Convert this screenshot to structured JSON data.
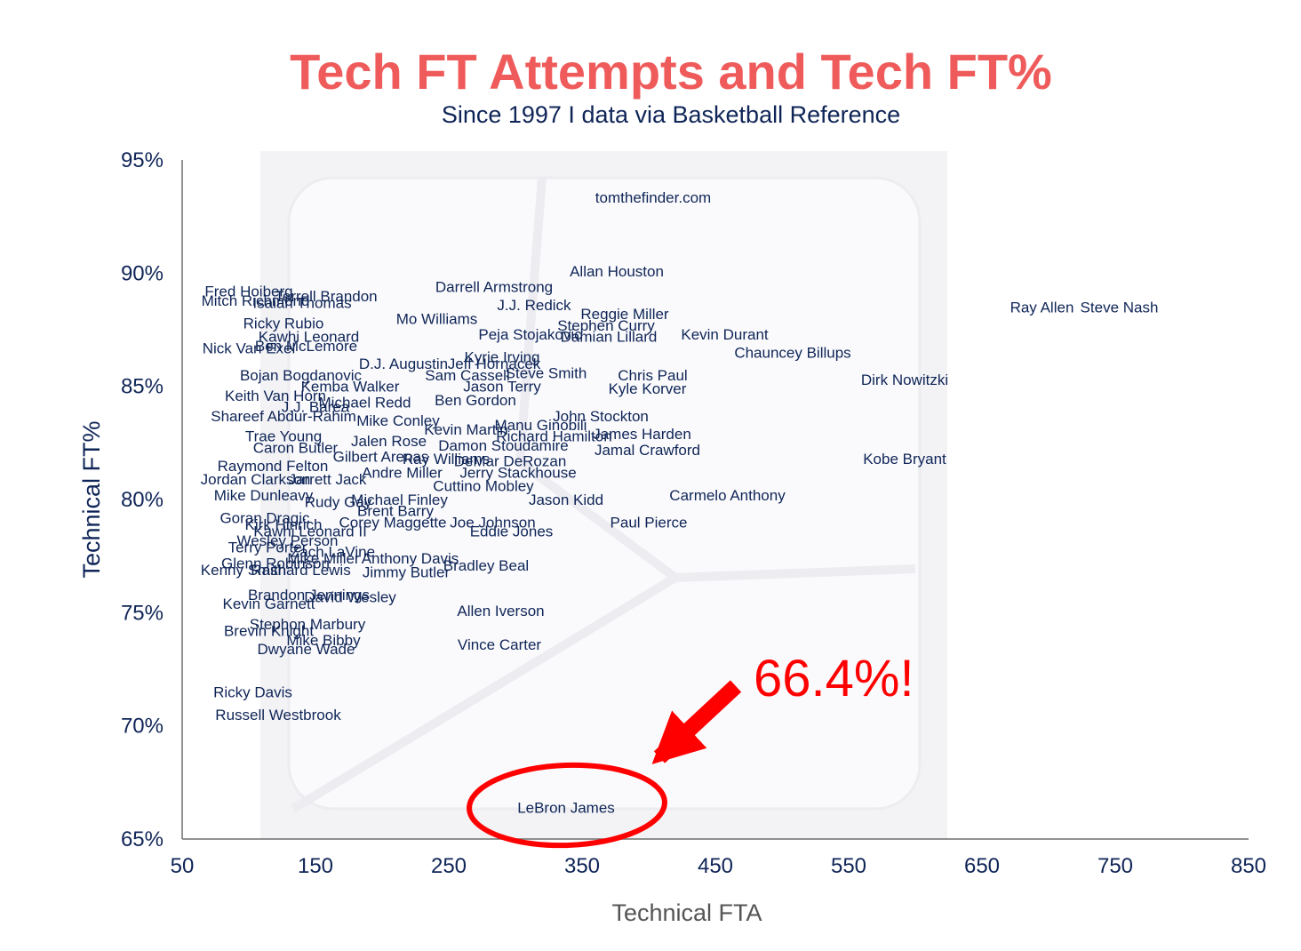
{
  "colors": {
    "title": "#ef5b5b",
    "navy": "#0f2557",
    "axis_gray": "#555555",
    "annotation_red": "#ff0000",
    "watermark_bg": "#f3f3f6"
  },
  "watermark": "tomthefinder.com",
  "annotation": "66.4%!",
  "chart_data": {
    "type": "scatter",
    "title": "Tech FT Attempts and Tech FT%",
    "subtitle": "Since 1997 I data via Basketball Reference",
    "xlabel": "Technical FTA",
    "ylabel": "Technical FT%",
    "xlim": [
      50,
      850
    ],
    "ylim": [
      65,
      95
    ],
    "xticks": [
      {
        "v": 50,
        "label": "50"
      },
      {
        "v": 150,
        "label": "150"
      },
      {
        "v": 250,
        "label": "250"
      },
      {
        "v": 350,
        "label": "350"
      },
      {
        "v": 450,
        "label": "450"
      },
      {
        "v": 550,
        "label": "550"
      },
      {
        "v": 650,
        "label": "650"
      },
      {
        "v": 750,
        "label": "750"
      },
      {
        "v": 850,
        "label": "850"
      }
    ],
    "yticks": [
      {
        "v": 65,
        "label": "65%"
      },
      {
        "v": 70,
        "label": "70%"
      },
      {
        "v": 75,
        "label": "75%"
      },
      {
        "v": 80,
        "label": "80%"
      },
      {
        "v": 85,
        "label": "85%"
      },
      {
        "v": 90,
        "label": "90%"
      },
      {
        "v": 95,
        "label": "95%"
      }
    ],
    "grid": false,
    "legend": "none",
    "highlight": "LeBron James",
    "points": [
      {
        "name": "Ray Allen",
        "x": 695,
        "y": 88.5
      },
      {
        "name": "Steve Nash",
        "x": 753,
        "y": 88.5
      },
      {
        "name": "Dirk Nowitzki",
        "x": 592,
        "y": 85.3
      },
      {
        "name": "Chauncey Billups",
        "x": 508,
        "y": 86.5
      },
      {
        "name": "Kobe Bryant",
        "x": 592,
        "y": 81.8
      },
      {
        "name": "Kevin Durant",
        "x": 457,
        "y": 87.3
      },
      {
        "name": "Carmelo Anthony",
        "x": 459,
        "y": 80.2
      },
      {
        "name": "Chris Paul",
        "x": 403,
        "y": 85.5
      },
      {
        "name": "Kyle Korver",
        "x": 399,
        "y": 84.9
      },
      {
        "name": "James Harden",
        "x": 395,
        "y": 82.9
      },
      {
        "name": "Jamal Crawford",
        "x": 399,
        "y": 82.2
      },
      {
        "name": "Paul Pierce",
        "x": 400,
        "y": 79.0
      },
      {
        "name": "Allan Houston",
        "x": 376,
        "y": 90.1
      },
      {
        "name": "Reggie Miller",
        "x": 382,
        "y": 88.2
      },
      {
        "name": "Stephen Curry",
        "x": 368,
        "y": 87.7
      },
      {
        "name": "Damian Lillard",
        "x": 370,
        "y": 87.2
      },
      {
        "name": "John Stockton",
        "x": 364,
        "y": 83.7
      },
      {
        "name": "Jason Kidd",
        "x": 338,
        "y": 80.0
      },
      {
        "name": "Darrell Armstrong",
        "x": 284,
        "y": 89.4
      },
      {
        "name": "J.J. Redick",
        "x": 314,
        "y": 88.6
      },
      {
        "name": "Peja Stojakovic",
        "x": 311,
        "y": 87.3
      },
      {
        "name": "Mo Williams",
        "x": 241,
        "y": 88.0
      },
      {
        "name": "Kyrie Irving",
        "x": 290,
        "y": 86.3
      },
      {
        "name": "Steve Smith",
        "x": 323,
        "y": 85.6
      },
      {
        "name": "Sam Cassell",
        "x": 264,
        "y": 85.5
      },
      {
        "name": "Jason Terry",
        "x": 290,
        "y": 85.0
      },
      {
        "name": "Ben Gordon",
        "x": 270,
        "y": 84.4
      },
      {
        "name": "Manu Ginobili",
        "x": 319,
        "y": 83.3
      },
      {
        "name": "Richard Hamilton",
        "x": 329,
        "y": 82.8
      },
      {
        "name": "Damon Stoudamire",
        "x": 291,
        "y": 82.4
      },
      {
        "name": "DeMar DeRozan",
        "x": 296,
        "y": 81.7
      },
      {
        "name": "Jerry Stackhouse",
        "x": 302,
        "y": 81.2
      },
      {
        "name": "Cuttino Mobley",
        "x": 276,
        "y": 80.6
      },
      {
        "name": "Joe Johnson",
        "x": 283,
        "y": 79.0
      },
      {
        "name": "Eddie Jones",
        "x": 297,
        "y": 78.6
      },
      {
        "name": "Bradley Beal",
        "x": 278,
        "y": 77.1
      },
      {
        "name": "Jimmy Butler",
        "x": 218,
        "y": 76.8
      },
      {
        "name": "Anthony Davis",
        "x": 221,
        "y": 77.4
      },
      {
        "name": "David Wesley",
        "x": 176,
        "y": 75.7
      },
      {
        "name": "Allen Iverson",
        "x": 289,
        "y": 75.1
      },
      {
        "name": "Vince Carter",
        "x": 288,
        "y": 73.6
      },
      {
        "name": "Fred Hoiberg",
        "x": 100,
        "y": 89.2
      },
      {
        "name": "Mitch Richmond",
        "x": 105,
        "y": 88.8
      },
      {
        "name": "Isaiah Thomas",
        "x": 140,
        "y": 88.7
      },
      {
        "name": "Terrell Brandon",
        "x": 158,
        "y": 89.0
      },
      {
        "name": "Ricky Rubio",
        "x": 126,
        "y": 87.8
      },
      {
        "name": "Kawhi Leonard",
        "x": 145,
        "y": 87.2
      },
      {
        "name": "Nick Van Exel",
        "x": 100,
        "y": 86.7
      },
      {
        "name": "Ben McLemore",
        "x": 143,
        "y": 86.8
      },
      {
        "name": "D.J. Augustin",
        "x": 216,
        "y": 86.0
      },
      {
        "name": "Jeff Hornacek",
        "x": 284,
        "y": 86.0
      },
      {
        "name": "Bojan Bogdanovic",
        "x": 139,
        "y": 85.5
      },
      {
        "name": "Kemba Walker",
        "x": 176,
        "y": 85.0
      },
      {
        "name": "Keith Van Horn",
        "x": 120,
        "y": 84.6
      },
      {
        "name": "J.J. Barea",
        "x": 150,
        "y": 84.1
      },
      {
        "name": "Michael Redd",
        "x": 187,
        "y": 84.3
      },
      {
        "name": "Shareef Abdur-Rahim",
        "x": 126,
        "y": 83.7
      },
      {
        "name": "Mike Conley",
        "x": 212,
        "y": 83.5
      },
      {
        "name": "Kevin Martin",
        "x": 263,
        "y": 83.1
      },
      {
        "name": "Trae Young",
        "x": 126,
        "y": 82.8
      },
      {
        "name": "Jalen Rose",
        "x": 205,
        "y": 82.6
      },
      {
        "name": "Caron Butler",
        "x": 135,
        "y": 82.3
      },
      {
        "name": "Gilbert Arenas",
        "x": 199,
        "y": 81.9
      },
      {
        "name": "Ray Williams",
        "x": 248,
        "y": 81.8
      },
      {
        "name": "Raymond Felton",
        "x": 118,
        "y": 81.5
      },
      {
        "name": "Andre Miller",
        "x": 215,
        "y": 81.2
      },
      {
        "name": "Jordan Clarkson",
        "x": 105,
        "y": 80.9
      },
      {
        "name": "Jarrett Jack",
        "x": 159,
        "y": 80.9
      },
      {
        "name": "Mike Dunleavy",
        "x": 111,
        "y": 80.2
      },
      {
        "name": "Michael Finley",
        "x": 213,
        "y": 80.0
      },
      {
        "name": "Rudy Gay",
        "x": 167,
        "y": 79.9
      },
      {
        "name": "Brent Barry",
        "x": 210,
        "y": 79.5
      },
      {
        "name": "Goran Dragic",
        "x": 112,
        "y": 79.2
      },
      {
        "name": "Corey Maggette",
        "x": 208,
        "y": 79.0
      },
      {
        "name": "Kirk Hinrich",
        "x": 126,
        "y": 78.9
      },
      {
        "name": "Wesley Person",
        "x": 129,
        "y": 78.2
      },
      {
        "name": "Kawhi Leonard II",
        "x": 146,
        "y": 78.6
      },
      {
        "name": "Terry Porter",
        "x": 114,
        "y": 77.9
      },
      {
        "name": "Zach LaVine",
        "x": 163,
        "y": 77.7
      },
      {
        "name": "Mike Miller",
        "x": 156,
        "y": 77.4
      },
      {
        "name": "Glenn Robinson",
        "x": 120,
        "y": 77.2
      },
      {
        "name": "Kenny Smith",
        "x": 96,
        "y": 76.9
      },
      {
        "name": "Rashard Lewis",
        "x": 139,
        "y": 76.9
      },
      {
        "name": "Brandon Jennings",
        "x": 145,
        "y": 75.8
      },
      {
        "name": "Kevin Garnett",
        "x": 115,
        "y": 75.4
      },
      {
        "name": "Stephon Marbury",
        "x": 144,
        "y": 74.5
      },
      {
        "name": "Brevin Knight",
        "x": 115,
        "y": 74.2
      },
      {
        "name": "Mike Bibby",
        "x": 156,
        "y": 73.8
      },
      {
        "name": "Dwyane Wade",
        "x": 143,
        "y": 73.4
      },
      {
        "name": "Ricky Davis",
        "x": 103,
        "y": 71.5
      },
      {
        "name": "Russell Westbrook",
        "x": 122,
        "y": 70.5
      },
      {
        "name": "LeBron James",
        "x": 338,
        "y": 66.4
      }
    ]
  }
}
